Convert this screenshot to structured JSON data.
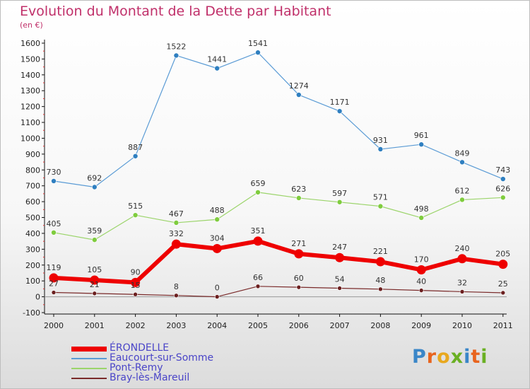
{
  "header": {
    "title": "Evolution du Montant de la Dette par Habitant",
    "unit": "(en €)"
  },
  "brand": {
    "text": "Proxiti"
  },
  "colors": {
    "title": "#c0306a",
    "legend_text": "#4a45c8",
    "axis": "#111111",
    "zero_line": "#999999"
  },
  "chart_data": {
    "type": "line",
    "title": "Evolution du Montant de la Dette par Habitant",
    "subtitle": "(en €)",
    "xlabel": "",
    "ylabel": "",
    "x": [
      "2000",
      "2001",
      "2002",
      "2003",
      "2004",
      "2005",
      "2006",
      "2007",
      "2008",
      "2009",
      "2010",
      "2011"
    ],
    "ylim": [
      -100,
      1600
    ],
    "yticks": [
      -100,
      0,
      100,
      200,
      300,
      400,
      500,
      600,
      700,
      800,
      900,
      1000,
      1100,
      1200,
      1300,
      1400,
      1500,
      1600
    ],
    "grid": false,
    "legend_position": "bottom-left",
    "series": [
      {
        "name": "Eaucourt-sur-Somme",
        "color": "#5a9bd5",
        "marker": "#2f7fc0",
        "width": 1.2,
        "radius": 3.5,
        "values": [
          730,
          692,
          887,
          1522,
          1441,
          1541,
          1274,
          1171,
          931,
          961,
          849,
          743
        ]
      },
      {
        "name": "Pont-Remy",
        "color": "#9bd46a",
        "marker": "#7fcc3e",
        "width": 1.2,
        "radius": 3.5,
        "values": [
          405,
          359,
          515,
          467,
          488,
          659,
          623,
          597,
          571,
          498,
          612,
          626
        ]
      },
      {
        "name": "ÉRONDELLE",
        "color": "#ee0000",
        "marker": "#ee0000",
        "width": 6,
        "radius": 6.5,
        "values": [
          119,
          105,
          90,
          332,
          304,
          351,
          271,
          247,
          221,
          170,
          240,
          205
        ]
      },
      {
        "name": "Bray-lès-Mareuil",
        "color": "#7a2a2a",
        "marker": "#6b1f1f",
        "width": 1.2,
        "radius": 3,
        "values": [
          27,
          21,
          15,
          8,
          0,
          66,
          60,
          54,
          48,
          40,
          32,
          25
        ]
      }
    ],
    "legend_order": [
      "ÉRONDELLE",
      "Eaucourt-sur-Somme",
      "Pont-Remy",
      "Bray-lès-Mareuil"
    ]
  }
}
